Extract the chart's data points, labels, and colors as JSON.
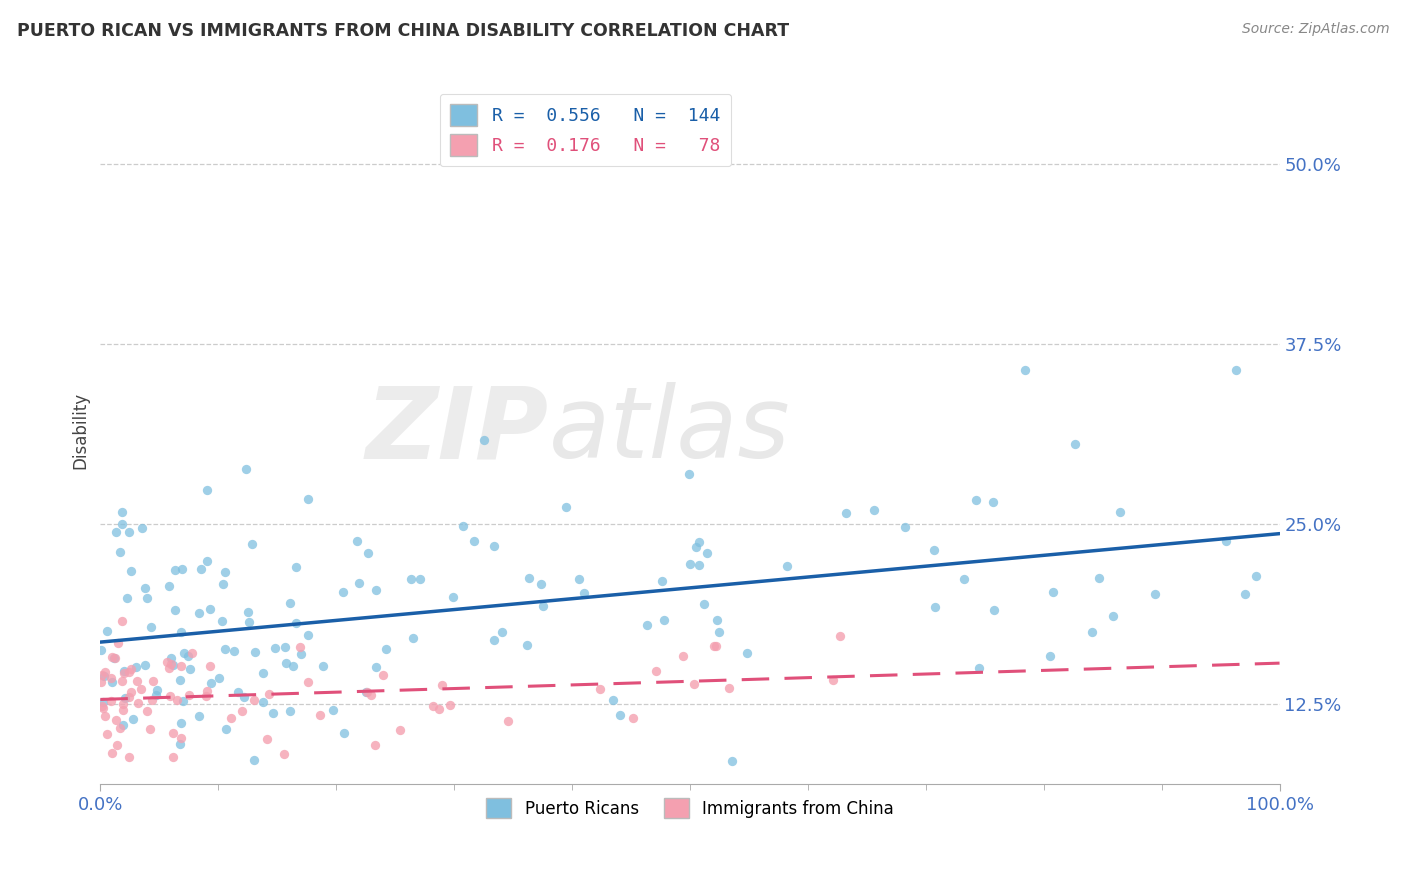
{
  "title": "PUERTO RICAN VS IMMIGRANTS FROM CHINA DISABILITY CORRELATION CHART",
  "source": "Source: ZipAtlas.com",
  "ylabel": "Disability",
  "xlabel": "",
  "blue_R": 0.556,
  "blue_N": 144,
  "pink_R": 0.176,
  "pink_N": 78,
  "blue_color": "#7fbfdf",
  "pink_color": "#f4a0b0",
  "blue_line_color": "#1a5fa8",
  "pink_line_color": "#e0507a",
  "xlim": [
    0,
    100
  ],
  "ylim": [
    7,
    56
  ],
  "yticks": [
    12.5,
    25.0,
    37.5,
    50.0
  ],
  "xticks": [
    0,
    100
  ],
  "watermark_zip": "ZIP",
  "watermark_atlas": "atlas",
  "legend_label_blue": "Puerto Ricans",
  "legend_label_pink": "Immigrants from China",
  "blue_trend_start_y": 16.5,
  "blue_trend_end_y": 24.5,
  "pink_trend_start_y": 12.8,
  "pink_trend_end_y": 14.2
}
